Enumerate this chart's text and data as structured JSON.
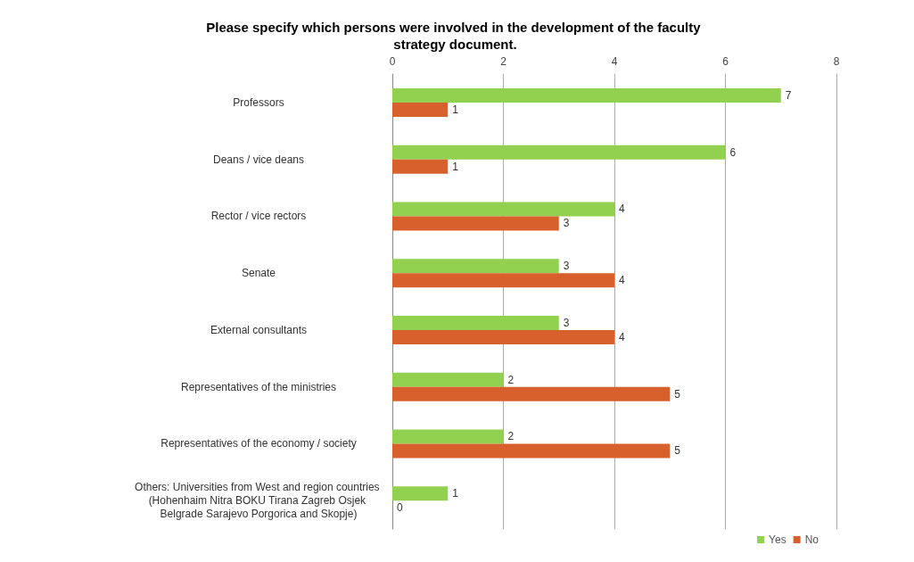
{
  "chart_data": {
    "type": "bar",
    "orientation": "horizontal",
    "title": "Please specify which persons were involved in the development of the faculty strategy document.",
    "categories": [
      "Professors",
      "Deans / vice deans",
      "Rector / vice rectors",
      "Senate",
      "External consultants",
      "Representatives of the ministries",
      "Representatives of the economy / society",
      "Others: Universities from West and region countries (Hohenhaim Nitra BOKU Tirana Zagreb Osjek Belgrade Sarajevo Porgorica and Skopje)"
    ],
    "series": [
      {
        "name": "Yes",
        "color": "#92d050",
        "values": [
          7,
          6,
          4,
          3,
          3,
          2,
          2,
          1
        ]
      },
      {
        "name": "No",
        "color": "#d8602c",
        "values": [
          1,
          1,
          3,
          4,
          4,
          5,
          5,
          0
        ]
      }
    ],
    "xlim": [
      0,
      8
    ],
    "xticks": [
      0,
      2,
      4,
      6,
      8
    ],
    "grid": "x",
    "legend": "bottom right",
    "data_labels": true
  }
}
